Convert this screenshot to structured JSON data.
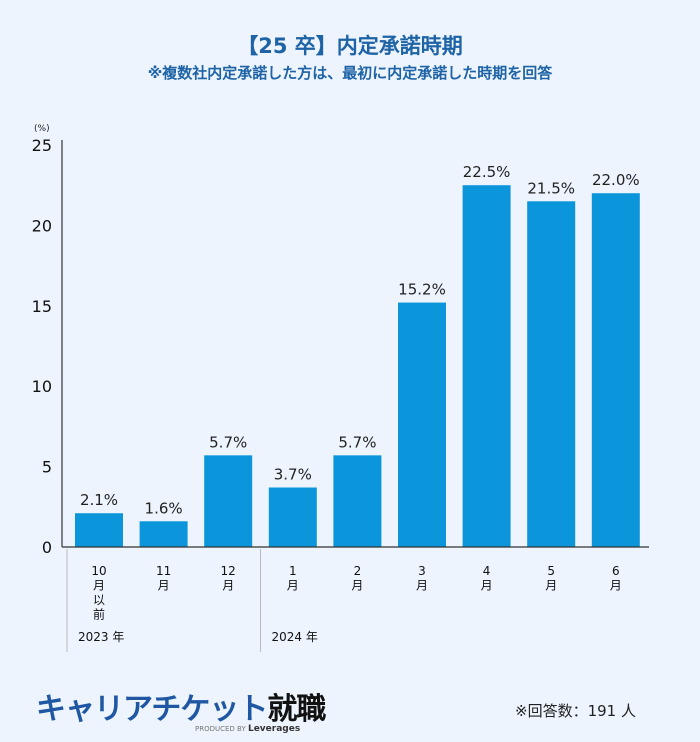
{
  "title": "【25 卒】内定承諾時期",
  "subtitle": "※複数社内定承諾した方は、最初に内定承諾した時期を回答",
  "chart_data": {
    "type": "bar",
    "unit_label": "(%)",
    "categories": [
      "10\n月\n以\n前",
      "11\n月",
      "12\n月",
      "1\n月",
      "2\n月",
      "3\n月",
      "4\n月",
      "5\n月",
      "6\n月"
    ],
    "groups": [
      {
        "label": "2023 年",
        "span": 3
      },
      {
        "label": "2024 年",
        "span": 6
      }
    ],
    "values": [
      2.1,
      1.6,
      5.7,
      3.7,
      5.7,
      15.2,
      22.5,
      21.5,
      22.0
    ],
    "data_labels": [
      "2.1%",
      "1.6%",
      "5.7%",
      "3.7%",
      "5.7%",
      "15.2%",
      "22.5%",
      "21.5%",
      "22.0%"
    ],
    "yticks": [
      0,
      5,
      10,
      15,
      20,
      25
    ],
    "ylim": [
      0,
      25
    ],
    "grid": false,
    "bar_color": "#0b96dc"
  },
  "logo": {
    "text_main": "キャリアチケット",
    "text_kanji": "就職",
    "produced_by": "PRODUCED BY",
    "brand": "Leverages"
  },
  "note": "※回答数：191 人"
}
